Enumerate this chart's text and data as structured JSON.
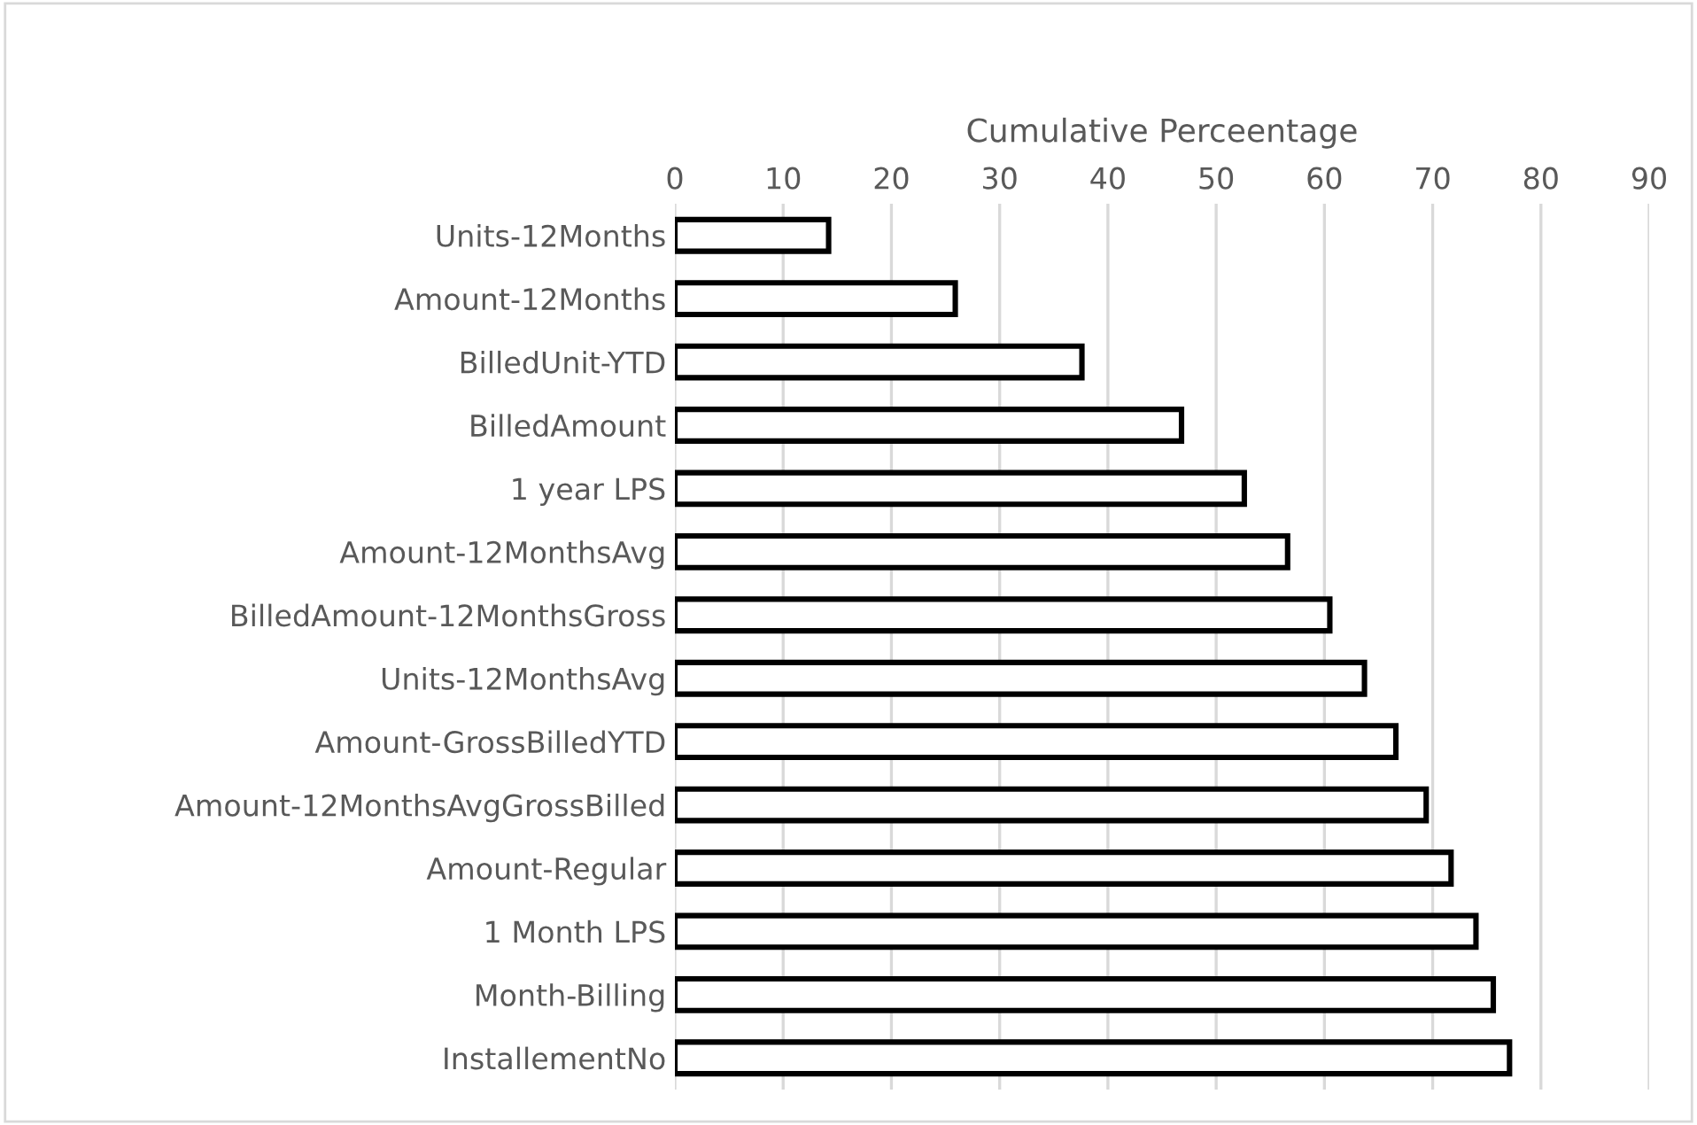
{
  "chart_data": {
    "type": "bar",
    "orientation": "horizontal",
    "xlabel": "Cumulative Perceentage",
    "categories": [
      "Units-12Months",
      "Amount-12Months",
      "BilledUnit-YTD",
      "BilledAmount",
      "1 year LPS",
      "Amount-12MonthsAvg",
      "BilledAmount-12MonthsGross",
      "Units-12MonthsAvg",
      "Amount-GrossBilledYTD",
      "Amount-12MonthsAvgGrossBilled",
      "Amount-Regular",
      "1 Month LPS",
      "Month-Billing",
      "InstallementNo"
    ],
    "values": [
      14.2,
      25.9,
      37.6,
      46.8,
      52.6,
      56.6,
      60.5,
      63.7,
      66.6,
      69.4,
      71.7,
      74.0,
      75.6,
      77.1
    ],
    "color": "#ffffff",
    "xlim": [
      0,
      90
    ],
    "xticks": [
      0,
      10,
      20,
      30,
      40,
      50,
      60,
      70,
      80,
      90
    ],
    "grid": "x"
  }
}
